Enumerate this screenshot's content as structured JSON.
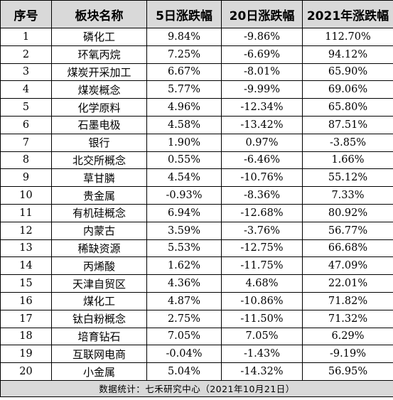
{
  "table": {
    "headers": [
      "序号",
      "板块名称",
      "5日涨跌幅",
      "20日涨跌幅",
      "2021年涨跌幅"
    ],
    "rows": [
      [
        "1",
        "磷化工",
        "9.84%",
        "-9.86%",
        "112.70%"
      ],
      [
        "2",
        "环氧丙烷",
        "7.25%",
        "-6.69%",
        "94.12%"
      ],
      [
        "3",
        "煤炭开采加工",
        "6.67%",
        "-8.01%",
        "65.90%"
      ],
      [
        "4",
        "煤炭概念",
        "5.77%",
        "-9.99%",
        "69.06%"
      ],
      [
        "5",
        "化学原料",
        "4.96%",
        "-12.34%",
        "65.80%"
      ],
      [
        "6",
        "石墨电极",
        "4.58%",
        "-13.42%",
        "87.51%"
      ],
      [
        "7",
        "银行",
        "1.90%",
        "0.97%",
        "-3.85%"
      ],
      [
        "8",
        "北交所概念",
        "0.55%",
        "-6.46%",
        "1.66%"
      ],
      [
        "9",
        "草甘膦",
        "4.54%",
        "-10.76%",
        "55.12%"
      ],
      [
        "10",
        "贵金属",
        "-0.93%",
        "-8.36%",
        "7.33%"
      ],
      [
        "11",
        "有机硅概念",
        "6.94%",
        "-12.68%",
        "80.92%"
      ],
      [
        "12",
        "内蒙古",
        "3.59%",
        "-3.76%",
        "56.77%"
      ],
      [
        "13",
        "稀缺资源",
        "5.53%",
        "-12.75%",
        "66.68%"
      ],
      [
        "14",
        "丙烯酸",
        "1.62%",
        "-11.75%",
        "47.09%"
      ],
      [
        "15",
        "天津自贸区",
        "4.36%",
        "4.68%",
        "22.01%"
      ],
      [
        "16",
        "煤化工",
        "4.87%",
        "-10.86%",
        "71.82%"
      ],
      [
        "17",
        "钛白粉概念",
        "2.75%",
        "-11.50%",
        "71.32%"
      ],
      [
        "18",
        "培育钻石",
        "7.05%",
        "7.05%",
        "6.29%"
      ],
      [
        "19",
        "互联网电商",
        "-0.04%",
        "-1.43%",
        "-9.19%"
      ],
      [
        "20",
        "小金属",
        "5.04%",
        "-14.32%",
        "56.95%"
      ]
    ],
    "footer": "数据统计：七禾研究中心（2021年10月21日）"
  },
  "colors": {
    "header_bg": "#d9d9d9",
    "footer_bg": "#d9d9d9",
    "border": "#000000",
    "text": "#000000"
  }
}
